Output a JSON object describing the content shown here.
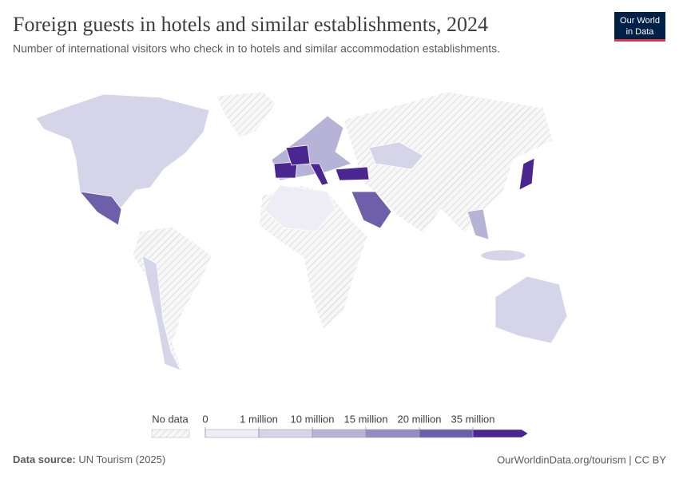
{
  "header": {
    "title": "Foreign guests in hotels and similar establishments, 2024",
    "subtitle": "Number of international visitors who check in to hotels and similar accommodation establishments.",
    "logo": [
      "Our World",
      "in Data"
    ]
  },
  "chart_data": {
    "type": "map",
    "legend": {
      "no_data_label": "No data",
      "ticks": [
        0,
        {
          "value": 1000000,
          "label": "1 million"
        },
        {
          "value": 10000000,
          "label": "10 million"
        },
        {
          "value": 15000000,
          "label": "15 million"
        },
        {
          "value": 20000000,
          "label": "20 million"
        },
        {
          "value": 35000000,
          "label": "35 million"
        }
      ],
      "colors": [
        "#eeedf5",
        "#d5d4e8",
        "#b6b3d7",
        "#928dc3",
        "#6e5fab",
        "#4a2790"
      ]
    }
  },
  "footer": {
    "source_label": "Data source:",
    "source": "UN Tourism (2025)",
    "url": "OurWorldinData.org/tourism | CC BY"
  }
}
